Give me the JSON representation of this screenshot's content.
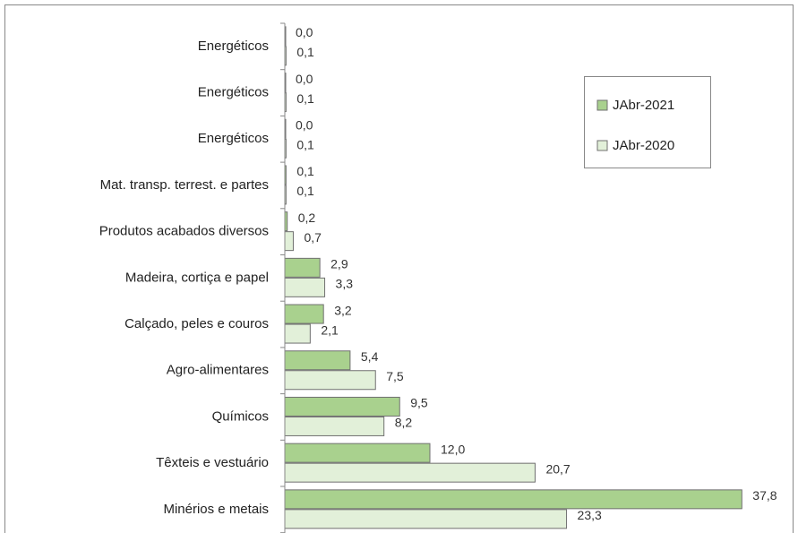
{
  "chart_data": {
    "type": "bar",
    "orientation": "horizontal",
    "categories": [
      "Energéticos",
      "Energéticos",
      "Energéticos",
      "Mat. transp. terrest. e partes",
      "Produtos acabados diversos",
      "Madeira, cortiça e papel",
      "Calçado, peles e couros",
      "Agro-alimentares",
      "Químicos",
      "Têxteis e vestuário",
      "Minérios e metais"
    ],
    "series": [
      {
        "name": "JAbr-2021",
        "color": "#a9d18e",
        "values": [
          0.0,
          0.0,
          0.0,
          0.1,
          0.2,
          2.9,
          3.2,
          5.4,
          9.5,
          12.0,
          37.8
        ],
        "value_labels": [
          "0,0",
          "0,0",
          "0,0",
          "0,1",
          "0,2",
          "2,9",
          "3,2",
          "5,4",
          "9,5",
          "12,0",
          "37,8"
        ]
      },
      {
        "name": "JAbr-2020",
        "color": "#e2f0d9",
        "values": [
          0.1,
          0.1,
          0.1,
          0.1,
          0.7,
          3.3,
          2.1,
          7.5,
          8.2,
          20.7,
          23.3
        ],
        "value_labels": [
          "0,1",
          "0,1",
          "0,1",
          "0,1",
          "0,7",
          "3,3",
          "2,1",
          "7,5",
          "8,2",
          "20,7",
          "23,3"
        ]
      }
    ],
    "xlim": [
      0,
      40
    ],
    "legend": "upper right"
  }
}
